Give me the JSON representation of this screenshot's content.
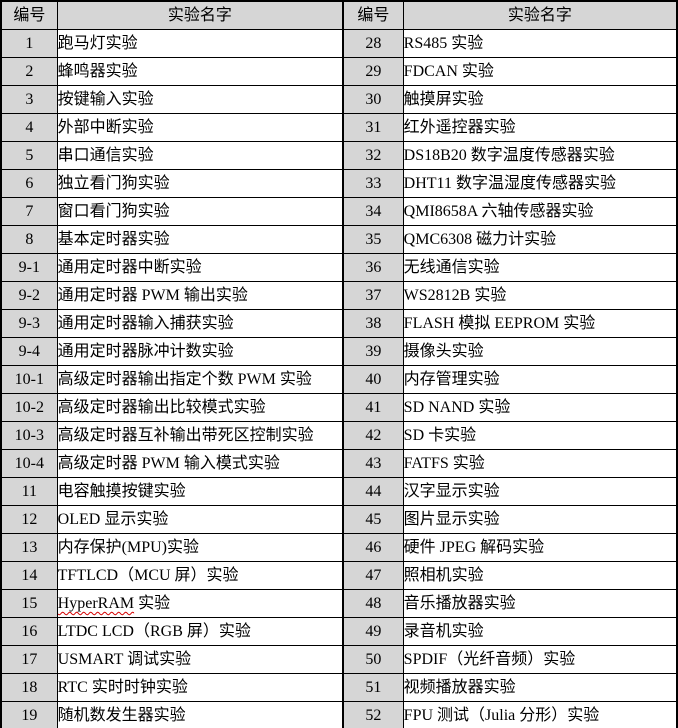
{
  "table": {
    "headers": [
      "编号",
      "实验名字",
      "编号",
      "实验名字"
    ],
    "colors": {
      "shaded_cell_bg": "#d6d6d6",
      "border": "#000000",
      "spellcheck_squiggle": "#d40000",
      "text": "#000000"
    },
    "left_rows": [
      {
        "id": "1",
        "name": "跑马灯实验"
      },
      {
        "id": "2",
        "name": "蜂鸣器实验"
      },
      {
        "id": "3",
        "name": "按键输入实验"
      },
      {
        "id": "4",
        "name": "外部中断实验"
      },
      {
        "id": "5",
        "name": "串口通信实验"
      },
      {
        "id": "6",
        "name": "独立看门狗实验"
      },
      {
        "id": "7",
        "name": "窗口看门狗实验"
      },
      {
        "id": "8",
        "name": "基本定时器实验"
      },
      {
        "id": "9-1",
        "name": "通用定时器中断实验"
      },
      {
        "id": "9-2",
        "name": "通用定时器 PWM 输出实验"
      },
      {
        "id": "9-3",
        "name": "通用定时器输入捕获实验"
      },
      {
        "id": "9-4",
        "name": "通用定时器脉冲计数实验"
      },
      {
        "id": "10-1",
        "name": "高级定时器输出指定个数 PWM 实验"
      },
      {
        "id": "10-2",
        "name": "高级定时器输出比较模式实验"
      },
      {
        "id": "10-3",
        "name": "高级定时器互补输出带死区控制实验"
      },
      {
        "id": "10-4",
        "name": "高级定时器 PWM 输入模式实验"
      },
      {
        "id": "11",
        "name": "电容触摸按键实验"
      },
      {
        "id": "12",
        "name": "OLED 显示实验"
      },
      {
        "id": "13",
        "name": "内存保护(MPU)实验"
      },
      {
        "id": "14",
        "name": "TFTLCD（MCU 屏）实验"
      },
      {
        "id": "15",
        "name": "HyperRAM 实验",
        "squiggle": "HyperRAM"
      },
      {
        "id": "16",
        "name": "LTDC LCD（RGB 屏）实验"
      },
      {
        "id": "17",
        "name": "USMART 调试实验"
      },
      {
        "id": "18",
        "name": "RTC 实时时钟实验"
      },
      {
        "id": "19",
        "name": "随机数发生器实验"
      }
    ],
    "right_rows": [
      {
        "id": "28",
        "name": "RS485 实验"
      },
      {
        "id": "29",
        "name": "FDCAN 实验"
      },
      {
        "id": "30",
        "name": "触摸屏实验"
      },
      {
        "id": "31",
        "name": "红外遥控器实验"
      },
      {
        "id": "32",
        "name": "DS18B20 数字温度传感器实验"
      },
      {
        "id": "33",
        "name": "DHT11 数字温湿度传感器实验"
      },
      {
        "id": "34",
        "name": "QMI8658A 六轴传感器实验"
      },
      {
        "id": "35",
        "name": "QMC6308 磁力计实验"
      },
      {
        "id": "36",
        "name": "无线通信实验"
      },
      {
        "id": "37",
        "name": "WS2812B 实验"
      },
      {
        "id": "38",
        "name": "FLASH 模拟 EEPROM 实验"
      },
      {
        "id": "39",
        "name": "摄像头实验"
      },
      {
        "id": "40",
        "name": "内存管理实验"
      },
      {
        "id": "41",
        "name": "SD NAND 实验"
      },
      {
        "id": "42",
        "name": "SD 卡实验"
      },
      {
        "id": "43",
        "name": "FATFS 实验"
      },
      {
        "id": "44",
        "name": "汉字显示实验"
      },
      {
        "id": "45",
        "name": "图片显示实验"
      },
      {
        "id": "46",
        "name": "硬件 JPEG 解码实验"
      },
      {
        "id": "47",
        "name": "照相机实验"
      },
      {
        "id": "48",
        "name": "音乐播放器实验"
      },
      {
        "id": "49",
        "name": "录音机实验"
      },
      {
        "id": "50",
        "name": "SPDIF（光纤音频）实验"
      },
      {
        "id": "51",
        "name": "视频播放器实验"
      },
      {
        "id": "52",
        "name": "FPU 测试（Julia 分形）实验"
      }
    ]
  }
}
